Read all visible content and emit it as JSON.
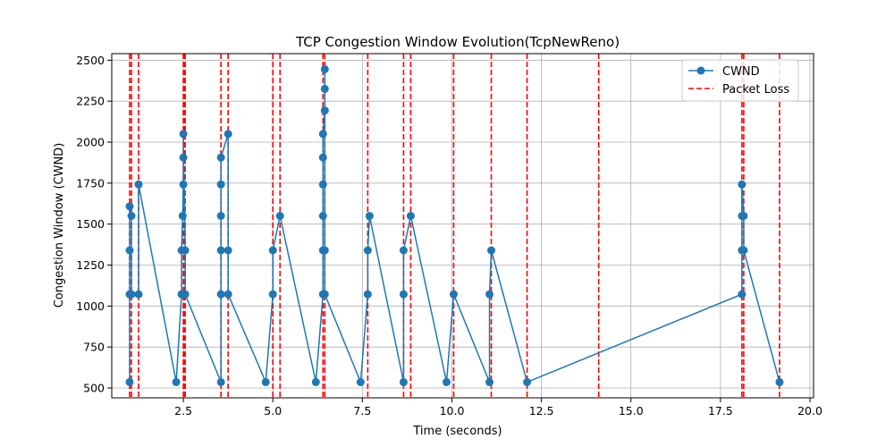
{
  "chart_data": {
    "type": "line",
    "title": "TCP Congestion Window Evolution(TcpNewReno)",
    "xlabel": "Time (seconds)",
    "ylabel": "Congestion Window (CWND)",
    "xlim": [
      0.5,
      20.1
    ],
    "ylim": [
      440,
      2540
    ],
    "x_ticks": [
      2.5,
      5.0,
      7.5,
      10.0,
      12.5,
      15.0,
      17.5,
      20.0
    ],
    "x_tick_labels": [
      "2.5",
      "5.0",
      "7.5",
      "10.0",
      "12.5",
      "15.0",
      "17.5",
      "20.0"
    ],
    "y_ticks": [
      500,
      750,
      1000,
      1250,
      1500,
      1750,
      2000,
      2250,
      2500
    ],
    "y_tick_labels": [
      "500",
      "750",
      "1000",
      "1250",
      "1500",
      "1750",
      "2000",
      "2250",
      "2500"
    ],
    "grid": true,
    "legend_position": "top-right",
    "series": [
      {
        "name": "CWND",
        "color": "#1f77b4",
        "marker": "circle",
        "points": [
          [
            1.0,
            536
          ],
          [
            1.0,
            1072
          ],
          [
            1.0,
            1340
          ],
          [
            1.0,
            1608
          ],
          [
            1.05,
            1550
          ],
          [
            1.05,
            1072
          ],
          [
            1.25,
            1072
          ],
          [
            1.25,
            1742
          ],
          [
            2.3,
            536
          ],
          [
            2.45,
            1072
          ],
          [
            2.45,
            1340
          ],
          [
            2.48,
            1550
          ],
          [
            2.5,
            1742
          ],
          [
            2.5,
            1906
          ],
          [
            2.5,
            2050
          ],
          [
            2.55,
            1340
          ],
          [
            2.55,
            1072
          ],
          [
            3.55,
            536
          ],
          [
            3.55,
            1072
          ],
          [
            3.55,
            1340
          ],
          [
            3.55,
            1550
          ],
          [
            3.55,
            1742
          ],
          [
            3.55,
            1906
          ],
          [
            3.75,
            2050
          ],
          [
            3.75,
            1340
          ],
          [
            3.75,
            1072
          ],
          [
            4.8,
            536
          ],
          [
            5.0,
            1072
          ],
          [
            5.0,
            1340
          ],
          [
            5.2,
            1550
          ],
          [
            6.2,
            536
          ],
          [
            6.4,
            1072
          ],
          [
            6.4,
            1340
          ],
          [
            6.4,
            1550
          ],
          [
            6.4,
            1742
          ],
          [
            6.4,
            1906
          ],
          [
            6.4,
            2050
          ],
          [
            6.45,
            2193
          ],
          [
            6.45,
            2325
          ],
          [
            6.45,
            2445
          ],
          [
            6.45,
            1340
          ],
          [
            6.45,
            1072
          ],
          [
            7.45,
            536
          ],
          [
            7.65,
            1072
          ],
          [
            7.65,
            1340
          ],
          [
            7.7,
            1550
          ],
          [
            8.65,
            536
          ],
          [
            8.65,
            1072
          ],
          [
            8.65,
            1340
          ],
          [
            8.85,
            1550
          ],
          [
            9.85,
            536
          ],
          [
            10.05,
            1072
          ],
          [
            11.05,
            536
          ],
          [
            11.05,
            1072
          ],
          [
            11.1,
            1340
          ],
          [
            12.1,
            536
          ],
          [
            18.1,
            1072
          ],
          [
            18.1,
            1340
          ],
          [
            18.1,
            1550
          ],
          [
            18.1,
            1742
          ],
          [
            18.15,
            1550
          ],
          [
            18.15,
            1340
          ],
          [
            19.15,
            536
          ]
        ]
      },
      {
        "name": "Packet Loss",
        "color": "#ff0000",
        "style": "dashed",
        "x": [
          1.0,
          1.05,
          1.25,
          2.5,
          2.52,
          2.55,
          3.55,
          3.75,
          5.0,
          5.2,
          6.4,
          6.45,
          7.65,
          8.65,
          8.85,
          10.05,
          11.1,
          12.1,
          14.1,
          18.1,
          18.15,
          19.15
        ]
      }
    ]
  }
}
